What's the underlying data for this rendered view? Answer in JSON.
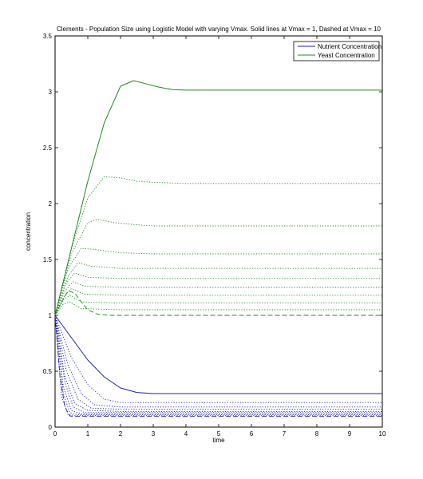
{
  "chart_data": {
    "type": "line",
    "title": "Clements - Population Size using Logistic Model with varying Vmax. Solid lines at Vmax = 1, Dashed at Vmax = 10",
    "xlabel": "time",
    "ylabel": "concentration",
    "xlim": [
      0,
      10
    ],
    "ylim": [
      0,
      3.5
    ],
    "xticks": [
      0,
      1,
      2,
      3,
      4,
      5,
      6,
      7,
      8,
      9,
      10
    ],
    "yticks": [
      0,
      0.5,
      1,
      1.5,
      2,
      2.5,
      3,
      3.5
    ],
    "ytick_labels": [
      "0",
      "0.5",
      "1",
      "1.5",
      "2",
      "2.5",
      "3",
      "3.5"
    ],
    "grid": false,
    "legend_position": "top-right",
    "legend": [
      {
        "label": "Nutrient Concentration",
        "color": "#1f1fb4"
      },
      {
        "label": "Yeast Concentration",
        "color": "#1f8a1f"
      }
    ],
    "colors": {
      "nutrient": "#1f1fb4",
      "yeast": "#1f8a1f"
    },
    "series": [
      {
        "group": "yeast",
        "style": "solid",
        "x": [
          0,
          0.5,
          1,
          1.5,
          2,
          2.4,
          2.8,
          3.2,
          3.6,
          4,
          5,
          6,
          7,
          8,
          9,
          10
        ],
        "y": [
          1.0,
          1.6,
          2.2,
          2.72,
          3.05,
          3.1,
          3.07,
          3.04,
          3.02,
          3.015,
          3.015,
          3.015,
          3.015,
          3.015,
          3.015,
          3.015
        ]
      },
      {
        "group": "yeast",
        "style": "dotted",
        "x": [
          0,
          0.5,
          1,
          1.5,
          2,
          2.5,
          3,
          4,
          10
        ],
        "y": [
          1.0,
          1.6,
          2.05,
          2.24,
          2.23,
          2.2,
          2.19,
          2.18,
          2.18
        ]
      },
      {
        "group": "yeast",
        "style": "dotted",
        "x": [
          0,
          0.5,
          1,
          1.3,
          1.8,
          2.5,
          3,
          10
        ],
        "y": [
          1.0,
          1.55,
          1.83,
          1.86,
          1.83,
          1.81,
          1.8,
          1.8
        ]
      },
      {
        "group": "yeast",
        "style": "dotted",
        "x": [
          0,
          0.4,
          0.8,
          1.2,
          2,
          3,
          10
        ],
        "y": [
          1.0,
          1.42,
          1.6,
          1.59,
          1.56,
          1.55,
          1.55
        ]
      },
      {
        "group": "yeast",
        "style": "dotted",
        "x": [
          0,
          0.4,
          0.7,
          1.1,
          2,
          10
        ],
        "y": [
          1.0,
          1.35,
          1.47,
          1.44,
          1.42,
          1.42
        ]
      },
      {
        "group": "yeast",
        "style": "dotted",
        "x": [
          0,
          0.3,
          0.6,
          1.0,
          2,
          10
        ],
        "y": [
          1.0,
          1.27,
          1.38,
          1.34,
          1.33,
          1.33
        ]
      },
      {
        "group": "yeast",
        "style": "dotted",
        "x": [
          0,
          0.3,
          0.55,
          0.9,
          2,
          10
        ],
        "y": [
          1.0,
          1.22,
          1.3,
          1.26,
          1.25,
          1.25
        ]
      },
      {
        "group": "yeast",
        "style": "dotted",
        "x": [
          0,
          0.3,
          0.5,
          0.9,
          2,
          10
        ],
        "y": [
          1.0,
          1.18,
          1.24,
          1.19,
          1.18,
          1.18
        ]
      },
      {
        "group": "yeast",
        "style": "dotted",
        "x": [
          0,
          0.25,
          0.45,
          0.8,
          2,
          10
        ],
        "y": [
          1.0,
          1.14,
          1.18,
          1.12,
          1.11,
          1.11
        ]
      },
      {
        "group": "yeast",
        "style": "dotted",
        "x": [
          0,
          0.25,
          0.45,
          0.8,
          2,
          10
        ],
        "y": [
          1.0,
          1.1,
          1.12,
          1.06,
          1.05,
          1.05
        ]
      },
      {
        "group": "yeast",
        "style": "dashed",
        "x": [
          0,
          0.2,
          0.4,
          0.6,
          0.8,
          1.0,
          1.3,
          1.7,
          2.5,
          10
        ],
        "y": [
          1.0,
          1.12,
          1.22,
          1.2,
          1.12,
          1.05,
          1.01,
          1.0,
          1.0,
          1.0
        ]
      },
      {
        "group": "nutrient",
        "style": "solid",
        "x": [
          0,
          0.5,
          1,
          1.5,
          2,
          2.5,
          3,
          4,
          10
        ],
        "y": [
          1.0,
          0.8,
          0.6,
          0.45,
          0.35,
          0.31,
          0.3,
          0.3,
          0.3
        ]
      },
      {
        "group": "nutrient",
        "style": "dotted",
        "x": [
          0,
          0.5,
          1,
          1.5,
          2,
          10
        ],
        "y": [
          1.0,
          0.62,
          0.38,
          0.25,
          0.22,
          0.22
        ]
      },
      {
        "group": "nutrient",
        "style": "dotted",
        "x": [
          0,
          0.4,
          0.8,
          1.2,
          2,
          10
        ],
        "y": [
          1.0,
          0.55,
          0.3,
          0.2,
          0.18,
          0.18
        ]
      },
      {
        "group": "nutrient",
        "style": "dotted",
        "x": [
          0,
          0.35,
          0.7,
          1.1,
          2,
          10
        ],
        "y": [
          1.0,
          0.5,
          0.25,
          0.17,
          0.16,
          0.16
        ]
      },
      {
        "group": "nutrient",
        "style": "dotted",
        "x": [
          0,
          0.3,
          0.6,
          1.0,
          2,
          10
        ],
        "y": [
          1.0,
          0.45,
          0.21,
          0.15,
          0.14,
          0.14
        ]
      },
      {
        "group": "nutrient",
        "style": "dotted",
        "x": [
          0,
          0.3,
          0.55,
          0.9,
          2,
          10
        ],
        "y": [
          1.0,
          0.4,
          0.18,
          0.13,
          0.13,
          0.13
        ]
      },
      {
        "group": "nutrient",
        "style": "dotted",
        "x": [
          0,
          0.25,
          0.5,
          0.8,
          2,
          10
        ],
        "y": [
          1.0,
          0.36,
          0.15,
          0.12,
          0.12,
          0.12
        ]
      },
      {
        "group": "nutrient",
        "style": "dotted",
        "x": [
          0,
          0.25,
          0.45,
          0.7,
          2,
          10
        ],
        "y": [
          1.0,
          0.3,
          0.13,
          0.11,
          0.11,
          0.11
        ]
      },
      {
        "group": "nutrient",
        "style": "dotted",
        "x": [
          0,
          0.2,
          0.4,
          0.6,
          2,
          10
        ],
        "y": [
          1.0,
          0.27,
          0.11,
          0.105,
          0.105,
          0.105
        ]
      },
      {
        "group": "nutrient",
        "style": "dashed",
        "x": [
          0,
          0.15,
          0.3,
          0.45,
          0.6,
          2,
          10
        ],
        "y": [
          1.0,
          0.45,
          0.18,
          0.1,
          0.095,
          0.095,
          0.095
        ]
      }
    ]
  }
}
